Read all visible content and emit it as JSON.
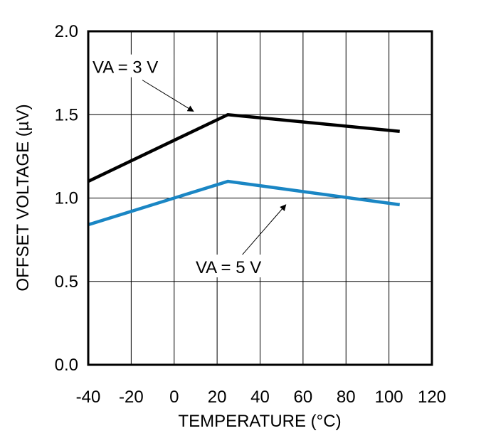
{
  "chart_data": {
    "type": "line",
    "title": "",
    "xlabel": "TEMPERATURE (°C)",
    "ylabel": "OFFSET VOLTAGE (µV)",
    "xlim": [
      -40,
      120
    ],
    "ylim": [
      0.0,
      2.0
    ],
    "xticks": [
      -40,
      -20,
      0,
      20,
      40,
      60,
      80,
      100,
      120
    ],
    "xtick_labels": [
      "-40",
      "-20",
      "0",
      "20",
      "40",
      "60",
      "80",
      "100",
      "120"
    ],
    "yticks": [
      0.0,
      0.5,
      1.0,
      1.5,
      2.0
    ],
    "ytick_labels": [
      "0.0",
      "0.5",
      "1.0",
      "1.5",
      "2.0"
    ],
    "grid": true,
    "series": [
      {
        "name": "VA = 3 V",
        "color": "#000000",
        "x": [
          -40,
          25,
          105
        ],
        "y": [
          1.1,
          1.5,
          1.4
        ]
      },
      {
        "name": "VA = 5 V",
        "color": "#1a86c4",
        "x": [
          -40,
          25,
          105
        ],
        "y": [
          0.84,
          1.1,
          0.96
        ]
      }
    ],
    "annotations": [
      {
        "text": "VA = 3 V",
        "text_at": [
          -38,
          1.75
        ],
        "arrow_to": [
          9,
          1.52
        ]
      },
      {
        "text": "VA = 5 V",
        "text_at": [
          10,
          0.55
        ],
        "arrow_to": [
          52,
          0.96
        ]
      }
    ]
  }
}
